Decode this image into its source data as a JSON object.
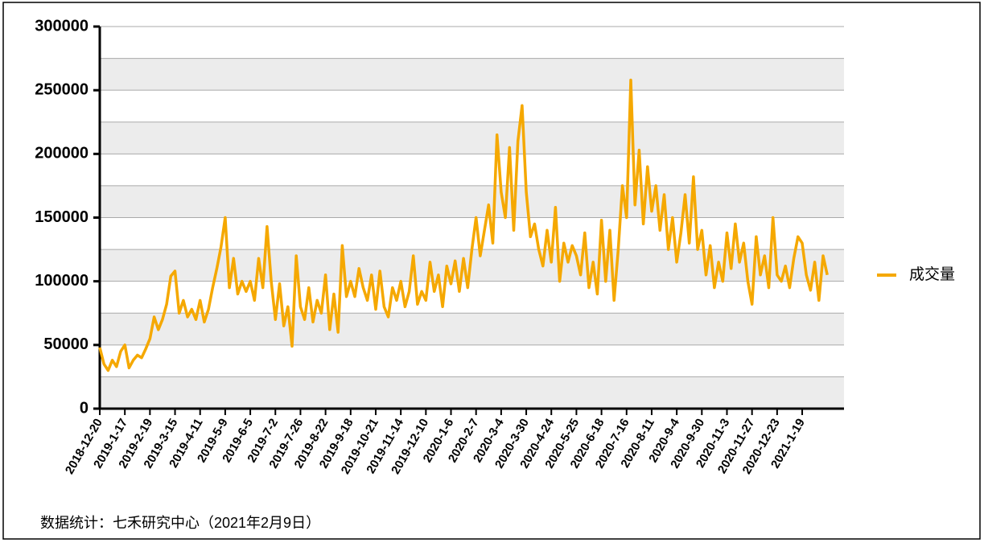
{
  "chart_data": {
    "type": "line",
    "source": "数据统计：七禾研究中心（2021年2月9日）",
    "categories": [
      "2018-12-20",
      null,
      null,
      null,
      null,
      null,
      "2019-1-17",
      null,
      null,
      null,
      null,
      null,
      "2019-2-19",
      null,
      null,
      null,
      null,
      null,
      "2019-3-15",
      null,
      null,
      null,
      null,
      null,
      "2019-4-11",
      null,
      null,
      null,
      null,
      null,
      "2019-5-9",
      null,
      null,
      null,
      null,
      null,
      "2019-6-5",
      null,
      null,
      null,
      null,
      null,
      "2019-7-2",
      null,
      null,
      null,
      null,
      null,
      "2019-7-26",
      null,
      null,
      null,
      null,
      null,
      "2019-8-22",
      null,
      null,
      null,
      null,
      null,
      "2019-9-18",
      null,
      null,
      null,
      null,
      null,
      "2019-10-21",
      null,
      null,
      null,
      null,
      null,
      "2019-11-14",
      null,
      null,
      null,
      null,
      null,
      "2019-12-10",
      null,
      null,
      null,
      null,
      null,
      "2020-1-6",
      null,
      null,
      null,
      null,
      null,
      "2020-2-7",
      null,
      null,
      null,
      null,
      null,
      "2020-3-4",
      null,
      null,
      null,
      null,
      null,
      "2020-3-30",
      null,
      null,
      null,
      null,
      null,
      "2020-4-24",
      null,
      null,
      null,
      null,
      null,
      "2020-5-25",
      null,
      null,
      null,
      null,
      null,
      "2020-6-18",
      null,
      null,
      null,
      null,
      null,
      "2020-7-16",
      null,
      null,
      null,
      null,
      null,
      "2020-8-11",
      null,
      null,
      null,
      null,
      null,
      "2020-9-4",
      null,
      null,
      null,
      null,
      null,
      "2020-9-30",
      null,
      null,
      null,
      null,
      null,
      "2020-11-3",
      null,
      null,
      null,
      null,
      null,
      "2020-11-27",
      null,
      null,
      null,
      null,
      null,
      "2020-12-23",
      null,
      null,
      null,
      null,
      null,
      "2021-1-19",
      null,
      null,
      null,
      null,
      null,
      null
    ],
    "series": [
      {
        "name": "成交量",
        "color": "#f5a800",
        "values": [
          48000,
          35000,
          30000,
          38000,
          33000,
          45000,
          50000,
          32000,
          38000,
          42000,
          40000,
          47000,
          55000,
          72000,
          62000,
          70000,
          82000,
          104000,
          108000,
          75000,
          85000,
          72000,
          78000,
          70000,
          85000,
          68000,
          78000,
          95000,
          110000,
          127000,
          150000,
          95000,
          118000,
          90000,
          100000,
          92000,
          100000,
          85000,
          118000,
          95000,
          143000,
          100000,
          70000,
          98000,
          65000,
          80000,
          49000,
          120000,
          80000,
          70000,
          95000,
          68000,
          85000,
          75000,
          105000,
          62000,
          90000,
          60000,
          128000,
          88000,
          100000,
          88000,
          110000,
          95000,
          85000,
          105000,
          78000,
          108000,
          80000,
          72000,
          95000,
          85000,
          100000,
          80000,
          92000,
          120000,
          82000,
          92000,
          85000,
          115000,
          92000,
          105000,
          80000,
          112000,
          98000,
          116000,
          92000,
          118000,
          95000,
          125000,
          150000,
          120000,
          140000,
          160000,
          130000,
          215000,
          170000,
          150000,
          205000,
          140000,
          210000,
          238000,
          170000,
          135000,
          145000,
          125000,
          112000,
          140000,
          115000,
          158000,
          100000,
          130000,
          115000,
          128000,
          120000,
          105000,
          138000,
          95000,
          115000,
          90000,
          148000,
          100000,
          140000,
          85000,
          125000,
          175000,
          150000,
          258000,
          160000,
          203000,
          145000,
          190000,
          155000,
          175000,
          140000,
          168000,
          125000,
          150000,
          115000,
          138000,
          168000,
          130000,
          182000,
          125000,
          140000,
          105000,
          128000,
          95000,
          115000,
          100000,
          138000,
          110000,
          145000,
          115000,
          130000,
          100000,
          82000,
          135000,
          105000,
          120000,
          95000,
          150000,
          105000,
          100000,
          112000,
          95000,
          118000,
          135000,
          130000,
          105000,
          93000,
          115000,
          85000,
          120000,
          105000
        ]
      }
    ],
    "ylim": [
      0,
      300000
    ],
    "yticks": [
      0,
      50000,
      100000,
      150000,
      200000,
      250000,
      300000
    ],
    "grid": true,
    "legend": "right"
  }
}
